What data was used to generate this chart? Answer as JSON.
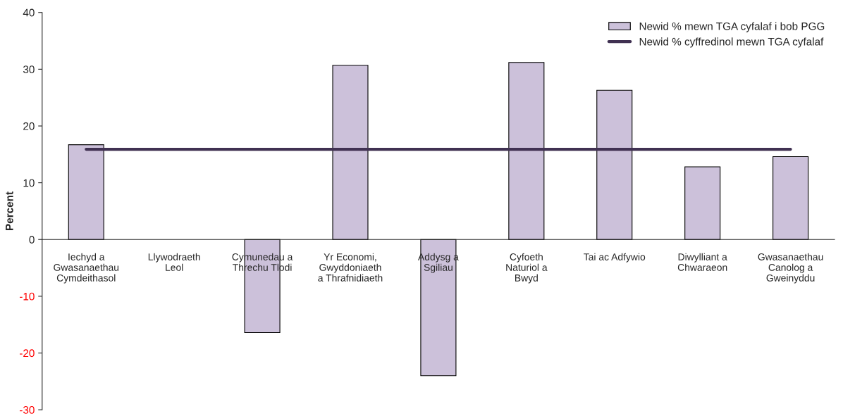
{
  "chart_data": {
    "type": "bar",
    "ylabel": "Percent",
    "categories": [
      "Iechyd a\nGwasanaethau\nCymdeithasol",
      "Llywodraeth\nLeol",
      "Cymunedau a\nThrechu Tlodi",
      "Yr Economi,\nGwyddoniaeth\na Thrafnidiaeth",
      "Addysg a\nSgiliau",
      "Cyfoeth\nNaturiol a\nBwyd",
      "Tai ac Adfywio",
      "Diwylliant a\nChwaraeon",
      "Gwasanaethau\nCanolog a\nGweinyddu"
    ],
    "series": [
      {
        "name": "Newid % mewn TGA cyfalaf i bob PGG",
        "color": "#ccc1da",
        "values": [
          16.7,
          null,
          -16.4,
          30.7,
          -24.0,
          31.2,
          26.3,
          12.8,
          14.6
        ]
      },
      {
        "name": "Newid % cyffredinol mewn TGA cyfalaf",
        "color": "#403152",
        "type": "line",
        "values": [
          15.9,
          15.9,
          15.9,
          15.9,
          15.9,
          15.9,
          15.9,
          15.9,
          15.9
        ]
      }
    ],
    "ylim": [
      -30,
      40
    ],
    "yticks": [
      -30,
      -20,
      -10,
      0,
      10,
      20,
      30,
      40
    ],
    "grid": false,
    "legend": "top right"
  }
}
